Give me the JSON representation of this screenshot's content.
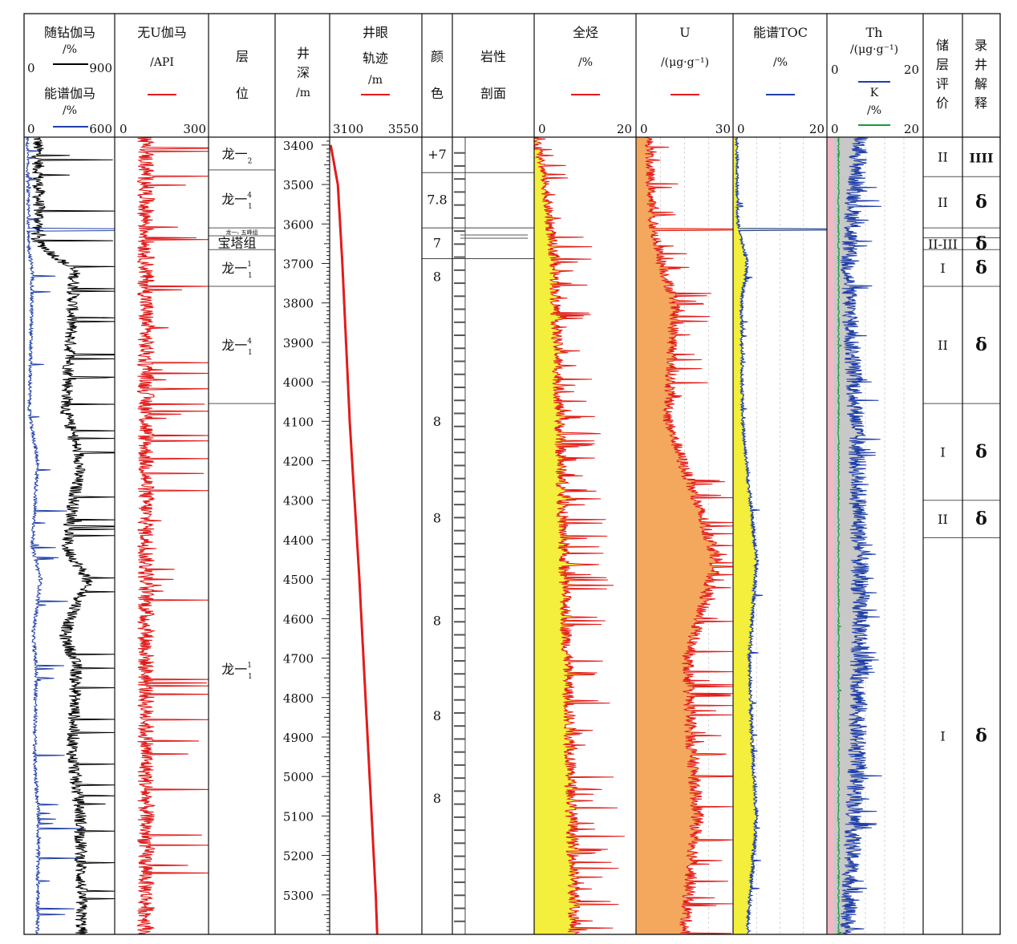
{
  "chart_data": {
    "type": "line",
    "depth": {
      "unit": "m",
      "range": [
        3380,
        5400
      ],
      "ticks": [
        3400,
        3500,
        3600,
        3700,
        3800,
        3900,
        4000,
        4100,
        4200,
        4300,
        4400,
        4500,
        4600,
        4700,
        4800,
        4900,
        5000,
        5100,
        5200,
        5300
      ]
    },
    "headers": {
      "gr_mwd": {
        "title": "随钻伽马",
        "unit": "/%",
        "min": "0",
        "max": "900"
      },
      "sgr": {
        "title": "能谱伽马",
        "unit": "/%",
        "min": "0",
        "max": "600"
      },
      "cgr": {
        "title": "无U伽马",
        "unit": "/API",
        "min": "0",
        "max": "300"
      },
      "layer": {
        "title": "层",
        "title2": "位"
      },
      "depth": {
        "t1": "井",
        "t2": "深",
        "t3": "/m"
      },
      "traj": {
        "title": "井眼",
        "title2": "轨迹",
        "unit": "/m",
        "min": "3100",
        "max": "3550"
      },
      "color": {
        "t1": "颜",
        "t2": "色"
      },
      "litho": {
        "title": "岩性",
        "title2": "剖面"
      },
      "gas": {
        "title": "全烃",
        "unit": "/%",
        "min": "0",
        "max": "20"
      },
      "u": {
        "title": "U",
        "unit": "/(μg·g⁻¹)",
        "min": "0",
        "max": "30"
      },
      "toc": {
        "title": "能谱TOC",
        "unit": "/%",
        "min": "0",
        "max": "20"
      },
      "thk": {
        "title": "Th",
        "unit": "/(μg·g⁻¹)",
        "title2": "K",
        "unit2": "/%",
        "min": "0",
        "max": "20"
      },
      "eval": {
        "t1": "储",
        "t2": "层",
        "t3": "评",
        "t4": "价"
      },
      "interp": {
        "t1": "录",
        "t2": "井",
        "t3": "解",
        "t4": "释"
      }
    },
    "layers": [
      {
        "top": 3380,
        "bottom": 3463,
        "name": "龙一",
        "sub": "2",
        "sup": ""
      },
      {
        "top": 3463,
        "bottom": 3610,
        "name": "龙一",
        "sub": "1",
        "sup": "4"
      },
      {
        "top": 3610,
        "bottom": 3630,
        "name": "龙一₁ 五峰组",
        "sub": "",
        "sup": "",
        "tiny": true
      },
      {
        "top": 3630,
        "bottom": 3665,
        "name": "宝塔组",
        "sub": "",
        "sup": ""
      },
      {
        "top": 3665,
        "bottom": 3758,
        "name": "龙一",
        "sub": "1",
        "sup": "1"
      },
      {
        "top": 3758,
        "bottom": 4055,
        "name": "龙一",
        "sub": "1",
        "sup": "4"
      },
      {
        "top": 4055,
        "bottom": 5400,
        "name": "龙一",
        "sub": "1",
        "sup": "1"
      }
    ],
    "trajectory": {
      "depth": [
        3400,
        3500,
        3700,
        4100,
        4500,
        4900,
        5300,
        5400
      ],
      "value": [
        3105,
        3140,
        3162,
        3198,
        3245,
        3285,
        3325,
        3332
      ]
    },
    "color_codes": [
      {
        "top": 3380,
        "bottom": 3470,
        "label": "+7"
      },
      {
        "top": 3470,
        "bottom": 3610,
        "label": "7.8"
      },
      {
        "top": 3610,
        "bottom": 3688,
        "label": "7"
      },
      {
        "top": 3688,
        "bottom": 4055,
        "label": "8"
      },
      {
        "top": 4055,
        "bottom": 4300,
        "label": "8"
      },
      {
        "top": 4300,
        "bottom": 4560,
        "label": "8"
      },
      {
        "top": 4560,
        "bottom": 4800,
        "label": "8"
      },
      {
        "top": 4800,
        "bottom": 5010,
        "label": "8"
      },
      {
        "top": 5010,
        "bottom": 5400,
        "label": "8"
      }
    ],
    "reservoir_eval": [
      {
        "top": 3380,
        "bottom": 3480,
        "label": "II",
        "sym": "IIII"
      },
      {
        "top": 3480,
        "bottom": 3610,
        "label": "II",
        "sym": "δ"
      },
      {
        "top": 3610,
        "bottom": 3635,
        "label": "",
        "sym": ""
      },
      {
        "top": 3635,
        "bottom": 3665,
        "label": "II-III",
        "sym": "δ"
      },
      {
        "top": 3665,
        "bottom": 3758,
        "label": "I",
        "sym": "δ"
      },
      {
        "top": 3758,
        "bottom": 4055,
        "label": "II",
        "sym": "δ"
      },
      {
        "top": 4055,
        "bottom": 4300,
        "label": "I",
        "sym": "δ"
      },
      {
        "top": 4300,
        "bottom": 4395,
        "label": "II",
        "sym": "δ"
      },
      {
        "top": 4395,
        "bottom": 5400,
        "label": "I",
        "sym": "δ"
      }
    ],
    "gr_profile": {
      "depth": [
        3380,
        3600,
        3640,
        3720,
        4080,
        4200,
        4420,
        4500,
        4640,
        4720,
        4950,
        5100,
        5400
      ],
      "value": [
        135,
        150,
        110,
        500,
        420,
        560,
        420,
        630,
        400,
        520,
        480,
        560,
        570
      ]
    },
    "sgr_profile": {
      "depth": [
        3380,
        3600,
        3640,
        3720,
        4080,
        4200,
        4420,
        4500,
        4640,
        4720,
        4950,
        5100,
        5400
      ],
      "value": [
        20,
        30,
        25,
        55,
        35,
        90,
        55,
        110,
        60,
        80,
        70,
        95,
        90
      ]
    },
    "cgr_profile": {
      "depth": [
        3380,
        5400
      ],
      "value": [
        100,
        100
      ]
    },
    "gas_profile": {
      "depth": [
        3380,
        3480,
        3700,
        4100,
        4500,
        4900,
        5400
      ],
      "value": [
        0.3,
        2,
        4,
        5,
        6,
        7,
        8
      ]
    },
    "u_profile": {
      "depth": [
        3380,
        3600,
        3700,
        3800,
        4100,
        4450,
        4700,
        4900,
        5100,
        5400
      ],
      "value": [
        4,
        5,
        8,
        12,
        10,
        25,
        16,
        17,
        19,
        15
      ]
    },
    "toc_profile": {
      "depth": [
        3380,
        3600,
        3700,
        3800,
        4100,
        4450,
        4700,
        4900,
        5100,
        5400
      ],
      "value": [
        0.8,
        1,
        3,
        1.8,
        2,
        5,
        3.5,
        4,
        5,
        3
      ]
    },
    "th_profile": {
      "depth": [
        3380,
        3600,
        3700,
        4100,
        4600,
        5000,
        5400
      ],
      "value": [
        6,
        4,
        3,
        5,
        6,
        5,
        3
      ]
    },
    "k_profile": {
      "depth": [
        3380,
        5400
      ],
      "value": [
        1,
        1
      ]
    },
    "spikes": {
      "depth": 3614,
      "sgr": 600,
      "u": 30,
      "toc": 20
    }
  }
}
